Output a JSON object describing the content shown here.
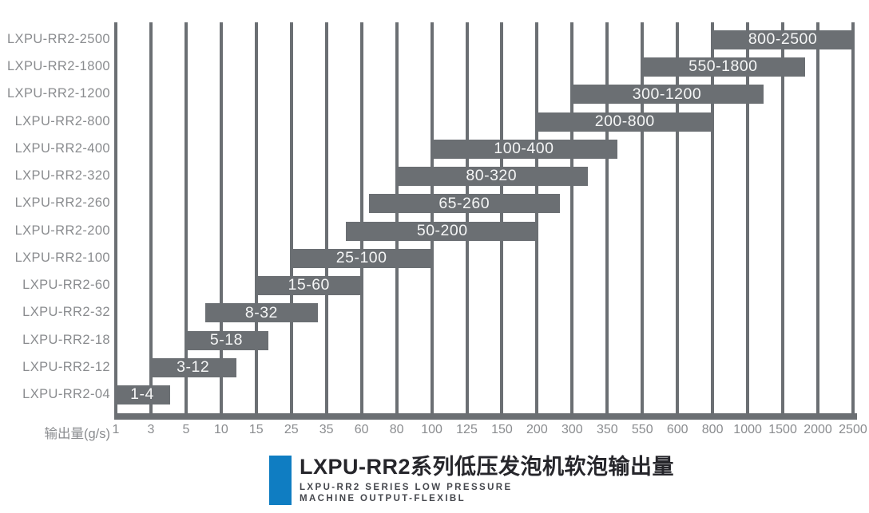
{
  "chart_data": {
    "type": "bar",
    "orientation": "horizontal-range",
    "title": "LXPU-RR2系列低压发泡机软泡输出量",
    "subtitle_lines": [
      "LXPU-RR2 SERIES LOW PRESSURE",
      "MACHINE OUTPUT-FLEXIBL"
    ],
    "xlabel": "输出量(g/s)",
    "x_ticks": [
      1,
      3,
      5,
      10,
      15,
      25,
      35,
      60,
      80,
      100,
      125,
      150,
      200,
      300,
      350,
      550,
      600,
      800,
      1000,
      1500,
      2000,
      2500
    ],
    "grid": true,
    "legend": "none",
    "rows": [
      {
        "model": "LXPU-RR2-2500",
        "range": [
          800,
          2500
        ],
        "label": "800-2500"
      },
      {
        "model": "LXPU-RR2-1800",
        "range": [
          550,
          1800
        ],
        "label": "550-1800"
      },
      {
        "model": "LXPU-RR2-1200",
        "range": [
          300,
          1200
        ],
        "label": "300-1200"
      },
      {
        "model": "LXPU-RR2-800",
        "range": [
          200,
          800
        ],
        "label": "200-800"
      },
      {
        "model": "LXPU-RR2-400",
        "range": [
          100,
          400
        ],
        "label": "100-400"
      },
      {
        "model": "LXPU-RR2-320",
        "range": [
          80,
          320
        ],
        "label": "80-320"
      },
      {
        "model": "LXPU-RR2-260",
        "range": [
          65,
          260
        ],
        "label": "65-260"
      },
      {
        "model": "LXPU-RR2-200",
        "range": [
          50,
          200
        ],
        "label": "50-200"
      },
      {
        "model": "LXPU-RR2-100",
        "range": [
          25,
          100
        ],
        "label": "25-100"
      },
      {
        "model": "LXPU-RR2-60",
        "range": [
          15,
          60
        ],
        "label": "15-60"
      },
      {
        "model": "LXPU-RR2-32",
        "range": [
          8,
          32
        ],
        "label": "8-32"
      },
      {
        "model": "LXPU-RR2-18",
        "range": [
          5,
          18
        ],
        "label": "5-18"
      },
      {
        "model": "LXPU-RR2-12",
        "range": [
          3,
          12
        ],
        "label": "3-12"
      },
      {
        "model": "LXPU-RR2-04",
        "range": [
          1,
          4
        ],
        "label": "1-4"
      }
    ],
    "colors": {
      "bar": "#6b6f73",
      "grid": "#6b6f73",
      "axis_line": "#6b6f73",
      "axis_text": "#8a8c8f",
      "bar_text": "#f5f6f6",
      "accent_blue": "#0f7dc2",
      "title_text": "#26262b",
      "subtitle_text": "#45474d",
      "background": "#ffffff"
    }
  }
}
